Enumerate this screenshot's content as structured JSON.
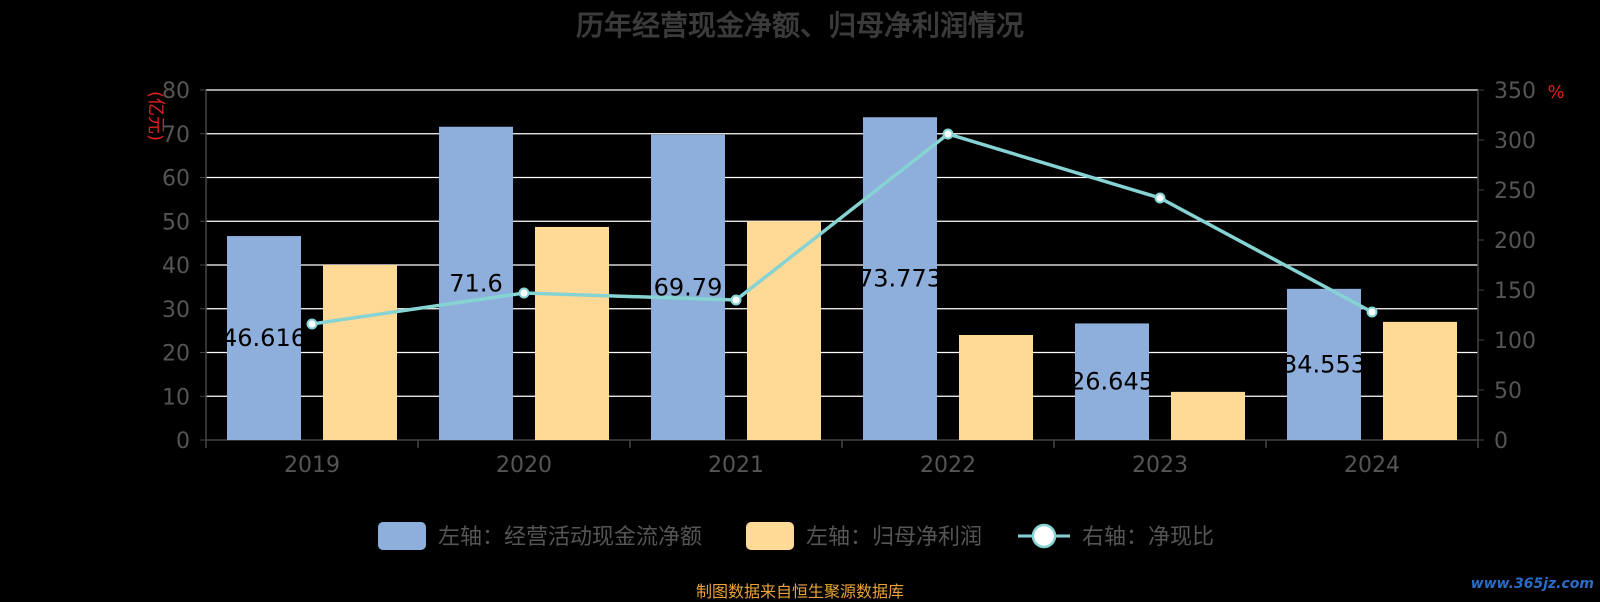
{
  "page": {
    "footer": "制图数据来自恒生聚源数据库",
    "watermark": "www.365jz.com"
  },
  "chart_data": {
    "type": "bar",
    "title": "历年经营现金净额、归母净利润情况",
    "categories": [
      "2019",
      "2020",
      "2021",
      "2022",
      "2023",
      "2024"
    ],
    "y_left": {
      "label": "(亿元)",
      "ticks": [
        0,
        10,
        20,
        30,
        40,
        50,
        60,
        70,
        80
      ],
      "range": [
        0,
        80
      ]
    },
    "y_right": {
      "label": "%",
      "ticks": [
        0,
        50,
        100,
        150,
        200,
        250,
        300,
        350
      ],
      "range": [
        0,
        350
      ]
    },
    "series": [
      {
        "name": "左轴：经营活动现金流净额",
        "type": "bar",
        "axis": "left",
        "color": "#8eaedb",
        "values": [
          46.616,
          71.6,
          69.79,
          73.773,
          26.645,
          34.553
        ],
        "labels": [
          "46.616",
          "71.6",
          "69.79",
          "73.773",
          "26.645",
          "34.553"
        ]
      },
      {
        "name": "左轴：归母净利润",
        "type": "bar",
        "axis": "left",
        "color": "#ffd996",
        "values": [
          40,
          48.7,
          50,
          24,
          11,
          27
        ]
      },
      {
        "name": "右轴：净现比",
        "type": "line",
        "axis": "right",
        "color": "#86d3d3",
        "values": [
          116,
          147,
          140,
          306,
          242,
          128
        ]
      }
    ],
    "grid": true,
    "legend_position": "bottom"
  },
  "colors": {
    "axis_label": "#e02020",
    "tick": "#555555",
    "grid": "#ffffff",
    "footer": "#e8a33a",
    "watermark": "#2a6cc6"
  }
}
